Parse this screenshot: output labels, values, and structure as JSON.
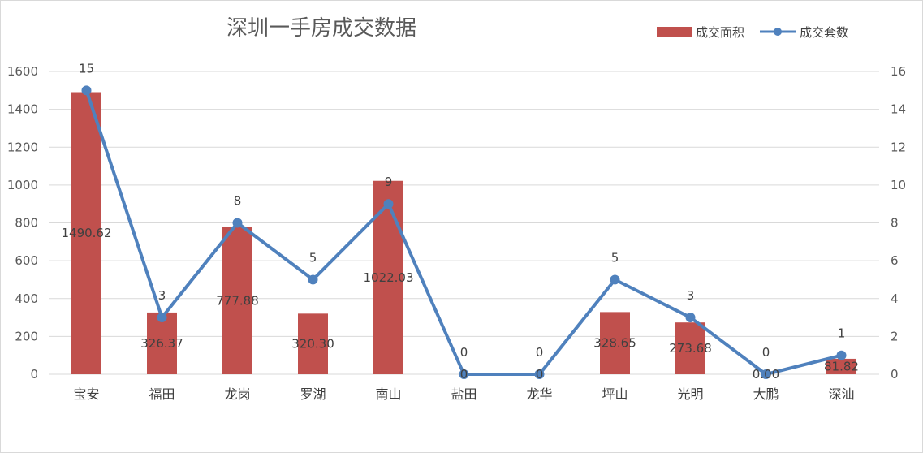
{
  "chart_data": {
    "type": "bar+line",
    "title": "深圳一手房成交数据",
    "categories": [
      "宝安",
      "福田",
      "龙岗",
      "罗湖",
      "南山",
      "盐田",
      "龙华",
      "坪山",
      "光明",
      "大鹏",
      "深汕"
    ],
    "series": [
      {
        "name": "成交面积",
        "type": "bar",
        "axis": "left",
        "values": [
          1490.62,
          326.37,
          777.88,
          320.3,
          1022.03,
          0,
          0,
          328.65,
          273.68,
          0.0,
          81.82
        ],
        "labels": [
          "1490.62",
          "326.37",
          "777.88",
          "320.30",
          "1022.03",
          "0",
          "0",
          "328.65",
          "273.68",
          "0.00",
          "81.82"
        ]
      },
      {
        "name": "成交套数",
        "type": "line",
        "axis": "right",
        "values": [
          15,
          3,
          8,
          5,
          9,
          0,
          0,
          5,
          3,
          0,
          1
        ],
        "labels": [
          "15",
          "3",
          "8",
          "5",
          "9",
          "0",
          "0",
          "5",
          "3",
          "0",
          "1"
        ]
      }
    ],
    "y_left": {
      "min": 0,
      "max": 1600,
      "ticks": [
        "0",
        "200",
        "400",
        "600",
        "800",
        "1000",
        "1200",
        "1400",
        "1600"
      ]
    },
    "y_right": {
      "min": 0,
      "max": 16,
      "ticks": [
        "0",
        "2",
        "4",
        "6",
        "8",
        "10",
        "12",
        "14",
        "16"
      ]
    },
    "grid": true,
    "legend": "top-right",
    "colors": {
      "bar": "#c0504d",
      "line": "#4f81bd",
      "grid": "#d9d9d9",
      "text": "#595959"
    }
  }
}
